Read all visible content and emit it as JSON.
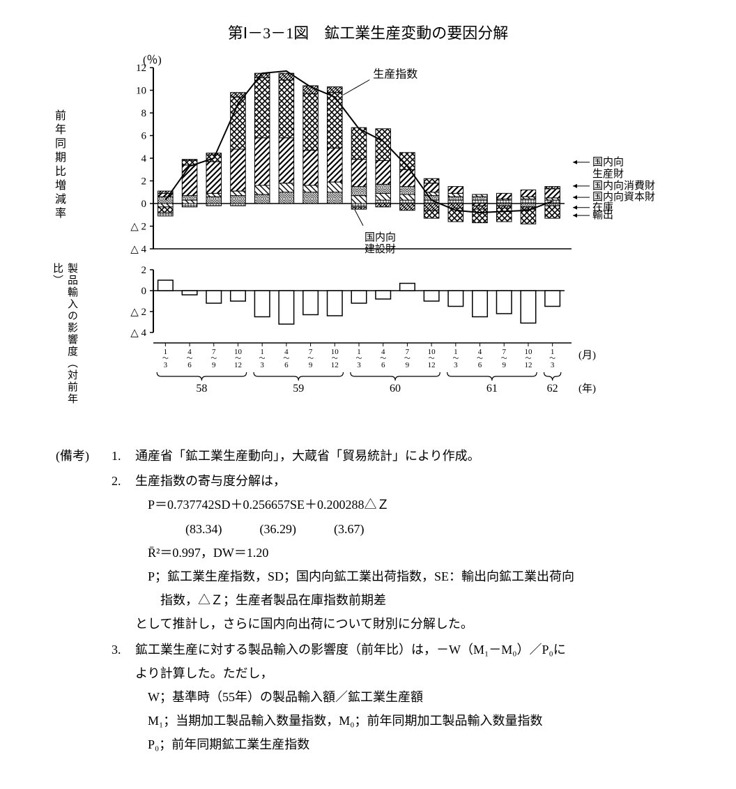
{
  "title": "第Ⅰ－3－1図　鉱工業生産変動の要因分解",
  "y_unit": "(％)",
  "ylabel_main": "前年同期比増減率",
  "ylabel_sub": "製品輸入の影響度（対前年比）",
  "xaxis": {
    "month_unit": "(月)",
    "year_unit": "(年)",
    "quarters": [
      "1~3",
      "4~6",
      "7~9",
      "10~12",
      "1~3",
      "4~6",
      "7~9",
      "10~12",
      "1~3",
      "4~6",
      "7~9",
      "10~12",
      "1~3",
      "4~6",
      "7~9",
      "10~12",
      "1~3"
    ],
    "years": [
      "58",
      "59",
      "60",
      "61",
      "62"
    ],
    "year_spans": [
      [
        0,
        4
      ],
      [
        4,
        8
      ],
      [
        8,
        12
      ],
      [
        12,
        16
      ],
      [
        16,
        17
      ]
    ]
  },
  "main_chart": {
    "type": "stacked-bar-with-line",
    "ylim": [
      -4,
      12
    ],
    "yticks": [
      -4,
      -2,
      0,
      2,
      4,
      6,
      8,
      10,
      12
    ],
    "neg_ytick_prefix": "△",
    "bar_width": 0.62,
    "line_label": "生産指数",
    "line_values": [
      0.3,
      3.3,
      4.0,
      8.8,
      11.5,
      11.7,
      10.3,
      9.4,
      6.6,
      5.5,
      3.3,
      0.3,
      -0.6,
      -0.8,
      -0.7,
      -0.6,
      0.2
    ],
    "stacks_pos": [
      [
        {
          "s": "capital",
          "v": 0.6
        },
        {
          "s": "producer",
          "v": 0.3
        },
        {
          "s": "cross",
          "v": 0.2
        }
      ],
      [
        {
          "s": "consumer",
          "v": 0.3
        },
        {
          "s": "capital",
          "v": 0.4
        },
        {
          "s": "producer",
          "v": 2.7
        },
        {
          "s": "export",
          "v": 0.4
        },
        {
          "s": "cross",
          "v": 0.1
        }
      ],
      [
        {
          "s": "capital",
          "v": 0.6
        },
        {
          "s": "consumer",
          "v": 0.3
        },
        {
          "s": "producer",
          "v": 2.8
        },
        {
          "s": "export",
          "v": 0.6
        },
        {
          "s": "cross",
          "v": 0.15
        }
      ],
      [
        {
          "s": "capital",
          "v": 0.7
        },
        {
          "s": "consumer",
          "v": 0.4
        },
        {
          "s": "producer",
          "v": 3.7
        },
        {
          "s": "export",
          "v": 4.6
        },
        {
          "s": "cross",
          "v": 0.4
        }
      ],
      [
        {
          "s": "capital",
          "v": 0.8
        },
        {
          "s": "consumer",
          "v": 0.8
        },
        {
          "s": "producer",
          "v": 4.2
        },
        {
          "s": "export",
          "v": 5.3
        },
        {
          "s": "cross",
          "v": 0.4
        }
      ],
      [
        {
          "s": "capital",
          "v": 1.0
        },
        {
          "s": "consumer",
          "v": 0.8
        },
        {
          "s": "producer",
          "v": 4.0
        },
        {
          "s": "export",
          "v": 5.1
        },
        {
          "s": "cross",
          "v": 0.6
        }
      ],
      [
        {
          "s": "capital",
          "v": 1.0
        },
        {
          "s": "consumer",
          "v": 0.6
        },
        {
          "s": "producer",
          "v": 3.1
        },
        {
          "s": "export",
          "v": 5.0
        },
        {
          "s": "cross",
          "v": 0.7
        }
      ],
      [
        {
          "s": "capital",
          "v": 1.0
        },
        {
          "s": "consumer",
          "v": 0.9
        },
        {
          "s": "producer",
          "v": 3.0
        },
        {
          "s": "export",
          "v": 4.9
        },
        {
          "s": "cross",
          "v": 0.5
        }
      ],
      [
        {
          "s": "consumer",
          "v": 0.7
        },
        {
          "s": "capital",
          "v": 0.8
        },
        {
          "s": "producer",
          "v": 2.4
        },
        {
          "s": "export",
          "v": 2.8
        }
      ],
      [
        {
          "s": "construct",
          "v": 0.3
        },
        {
          "s": "consumer",
          "v": 0.6
        },
        {
          "s": "capital",
          "v": 0.8
        },
        {
          "s": "producer",
          "v": 2.1
        },
        {
          "s": "export",
          "v": 2.8
        }
      ],
      [
        {
          "s": "construct",
          "v": 0.3
        },
        {
          "s": "consumer",
          "v": 0.5
        },
        {
          "s": "capital",
          "v": 0.7
        },
        {
          "s": "producer",
          "v": 1.5
        },
        {
          "s": "export",
          "v": 1.5
        }
      ],
      [
        {
          "s": "construct",
          "v": 0.3
        },
        {
          "s": "capital",
          "v": 0.4
        },
        {
          "s": "consumer",
          "v": 0.3
        },
        {
          "s": "producer",
          "v": 0.8
        },
        {
          "s": "export",
          "v": 0.4
        }
      ],
      [
        {
          "s": "construct",
          "v": 0.3
        },
        {
          "s": "capital",
          "v": 0.3
        },
        {
          "s": "consumer",
          "v": 0.3
        },
        {
          "s": "producer",
          "v": 0.6
        }
      ],
      [
        {
          "s": "construct",
          "v": 0.3
        },
        {
          "s": "capital",
          "v": 0.3
        },
        {
          "s": "consumer",
          "v": 0.2
        }
      ],
      [
        {
          "s": "construct",
          "v": 0.3
        },
        {
          "s": "consumer",
          "v": 0.1
        },
        {
          "s": "producer",
          "v": 0.5
        }
      ],
      [
        {
          "s": "construct",
          "v": 0.4
        },
        {
          "s": "consumer",
          "v": 0.2
        },
        {
          "s": "producer",
          "v": 0.6
        }
      ],
      [
        {
          "s": "construct",
          "v": 0.3
        },
        {
          "s": "consumer",
          "v": 0.2
        },
        {
          "s": "producer",
          "v": 0.8
        },
        {
          "s": "cross",
          "v": 0.2
        }
      ]
    ],
    "stacks_neg": [
      [
        {
          "s": "consumer",
          "v": -0.3
        },
        {
          "s": "export",
          "v": -0.5
        },
        {
          "s": "construct",
          "v": -0.3
        }
      ],
      [
        {
          "s": "construct",
          "v": -0.3
        }
      ],
      [
        {
          "s": "construct",
          "v": -0.2
        }
      ],
      [
        {
          "s": "construct",
          "v": -0.2
        }
      ],
      [],
      [],
      [],
      [],
      [
        {
          "s": "construct",
          "v": -0.3
        },
        {
          "s": "cross",
          "v": -0.2
        }
      ],
      [
        {
          "s": "cross",
          "v": -0.3
        }
      ],
      [
        {
          "s": "cross",
          "v": -0.6
        }
      ],
      [
        {
          "s": "cross",
          "v": -0.6
        },
        {
          "s": "export",
          "v": -0.7
        }
      ],
      [
        {
          "s": "cross",
          "v": -0.4
        },
        {
          "s": "export",
          "v": -1.2
        }
      ],
      [
        {
          "s": "producer",
          "v": -0.2
        },
        {
          "s": "cross",
          "v": -0.3
        },
        {
          "s": "export",
          "v": -1.2
        }
      ],
      [
        {
          "s": "capital",
          "v": -0.2
        },
        {
          "s": "cross",
          "v": -0.2
        },
        {
          "s": "export",
          "v": -1.2
        }
      ],
      [
        {
          "s": "capital",
          "v": -0.3
        },
        {
          "s": "cross",
          "v": -0.2
        },
        {
          "s": "export",
          "v": -1.3
        }
      ],
      [
        {
          "s": "capital",
          "v": -0.2
        },
        {
          "s": "export",
          "v": -1.1
        }
      ]
    ],
    "legend": [
      {
        "key": "producer",
        "label": "国内向生産財",
        "pattern": "diag1"
      },
      {
        "key": "consumer",
        "label": "国内向消費財",
        "pattern": "diag2"
      },
      {
        "key": "capital",
        "label": "国内向資本財",
        "pattern": "diag_fine"
      },
      {
        "key": "stock",
        "label": "在庫",
        "pattern": "dots"
      },
      {
        "key": "export",
        "label": "輸出",
        "pattern": "cross"
      },
      {
        "key": "construct",
        "label": "国内向建設財",
        "pattern": "hatch"
      }
    ],
    "annot_construct": "国内向建設財",
    "patterns": {
      "producer": "diag1",
      "consumer": "diag2",
      "capital": "diag_fine",
      "export": "cross",
      "construct": "hatch",
      "cross": "dots",
      "stock": "dots"
    }
  },
  "sub_chart": {
    "type": "bar",
    "ylim": [
      -4,
      2
    ],
    "yticks": [
      -4,
      -2,
      0,
      2
    ],
    "neg_ytick_prefix": "△",
    "values": [
      1.0,
      -0.4,
      -1.2,
      -1.0,
      -2.5,
      -3.2,
      -2.3,
      -2.4,
      -1.2,
      -0.8,
      0.7,
      -1.0,
      -1.5,
      -2.5,
      -2.2,
      -3.1,
      -1.5
    ],
    "bar_color": "#ffffff",
    "bar_stroke": "#000000"
  },
  "colors": {
    "background": "#ffffff",
    "axis": "#000000",
    "line": "#000000"
  },
  "notes": {
    "label": "(備考)",
    "items": [
      {
        "n": "1.",
        "lines": [
          "通産省「鉱工業生産動向」，大蔵省「貿易統計」により作成。"
        ]
      },
      {
        "n": "2.",
        "lines": [
          "生産指数の寄与度分解は，",
          "　P＝0.737742SD＋0.256657SE＋0.200288△Ｚ",
          "　　　　(83.34)　　　(36.29)　　　(3.67)",
          "　R̄²＝0.997，DW＝1.20",
          "　P；鉱工業生産指数，SD；国内向鉱工業出荷指数，SE：輸出向鉱工業出荷向",
          "　　指数，△Ｚ；生産者製品在庫指数前期差",
          "として推計し，さらに国内向出荷について財別に分解した。"
        ]
      },
      {
        "n": "3.",
        "lines": [
          "鉱工業生産に対する製品輸入の影響度（前年比）は，－W（M₁－M₀）／P₀に",
          "より計算した。ただし，",
          "　W；基準時（55年）の製品輸入額／鉱工業生産額",
          "　M₁；当期加工製品輸入数量指数，M₀；前年同期加工製品輸入数量指数",
          "　P₀；前年同期鉱工業生産指数"
        ]
      }
    ]
  }
}
